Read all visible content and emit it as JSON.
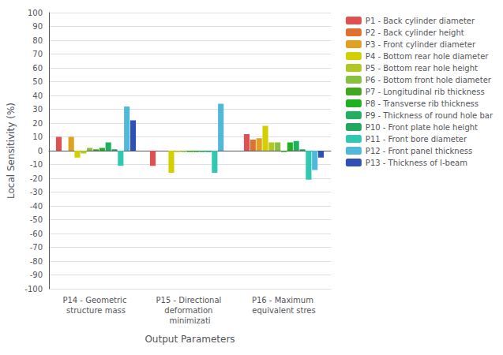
{
  "chart_data": {
    "type": "bar",
    "xlabel": "Output Parameters",
    "ylabel": "Local Sensitivity (%)",
    "categories": [
      "P14 - Geometric structure mass",
      "P15 - Directional deformation minimizati",
      "P16 - Maximum equivalent stres"
    ],
    "series": [
      {
        "name": "P1 - Back cylinder diameter",
        "color": "#e05050",
        "values": [
          10,
          -11,
          12
        ]
      },
      {
        "name": "P2 - Back cylinder height",
        "color": "#e07030",
        "values": [
          0,
          0,
          8
        ]
      },
      {
        "name": "P3 - Front cylinder diameter",
        "color": "#e0a020",
        "values": [
          10,
          0,
          9
        ]
      },
      {
        "name": "P4 - Bottom rear hole diameter",
        "color": "#d4d000",
        "values": [
          -5,
          -16,
          18
        ]
      },
      {
        "name": "P5 - Bottom rear hole height",
        "color": "#b0c820",
        "values": [
          -2,
          -1,
          6
        ]
      },
      {
        "name": "P6 - Bottom front hole diameter",
        "color": "#88c040",
        "values": [
          2,
          -1,
          6
        ]
      },
      {
        "name": "P7 - Longitudinal rib thickness",
        "color": "#40a820",
        "values": [
          1,
          -1,
          -1
        ]
      },
      {
        "name": "P8 - Transverse rib thickness",
        "color": "#20b020",
        "values": [
          2,
          -1,
          6
        ]
      },
      {
        "name": "P9 - Thickness of round hole bar",
        "color": "#20b060",
        "values": [
          6,
          -1,
          7
        ]
      },
      {
        "name": "P10 - Front plate hole height",
        "color": "#20a860",
        "values": [
          1,
          -1,
          1
        ]
      },
      {
        "name": "P11 - Front bore diameter",
        "color": "#30c8b0",
        "values": [
          -11,
          -16,
          -21
        ]
      },
      {
        "name": "P12 - Front panel thickness",
        "color": "#50b8d8",
        "values": [
          32,
          34,
          -14
        ]
      },
      {
        "name": "P13 - Thickness of I-beam",
        "color": "#3050b8",
        "values": [
          22,
          0,
          -5
        ]
      }
    ],
    "ylim": [
      -100,
      100
    ],
    "yticks": [
      -100,
      -90,
      -80,
      -70,
      -60,
      -50,
      -40,
      -30,
      -20,
      -10,
      0,
      10,
      20,
      30,
      40,
      50,
      60,
      70,
      80,
      90,
      100
    ],
    "grid": true,
    "legend": "right"
  }
}
